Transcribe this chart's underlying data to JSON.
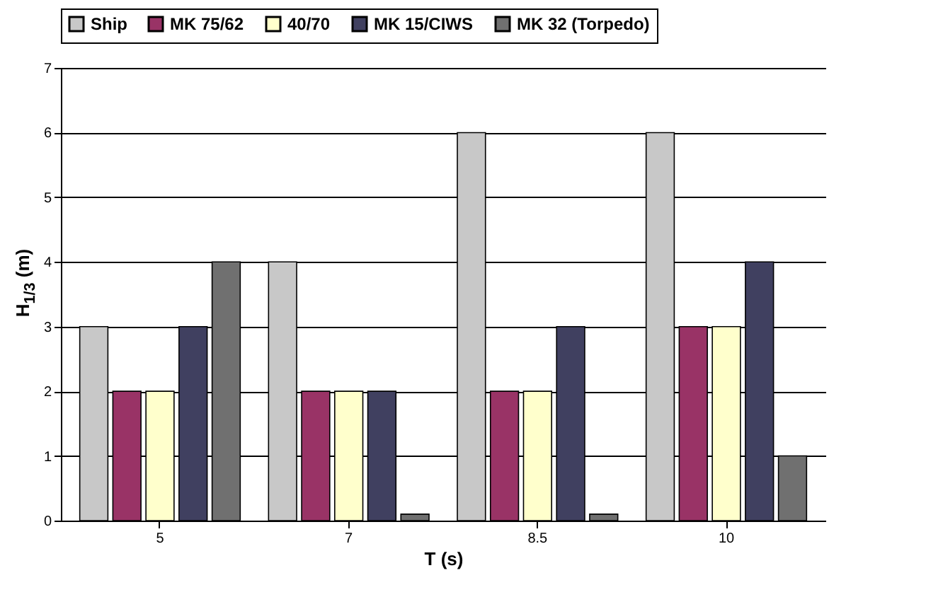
{
  "chart_data": {
    "type": "bar",
    "xlabel": "T (s)",
    "ylabel": "H$_{1/3}$ (m)",
    "categories": [
      "5",
      "7",
      "8.5",
      "10"
    ],
    "series": [
      {
        "name": "Ship",
        "color": "#c8c8c8",
        "values": [
          3,
          4,
          6,
          6
        ]
      },
      {
        "name": "MK 75/62",
        "color": "#993366",
        "values": [
          2,
          2,
          2,
          3
        ]
      },
      {
        "name": "40/70",
        "color": "#ffffcc",
        "values": [
          2,
          2,
          2,
          3
        ]
      },
      {
        "name": "MK 15/CIWS",
        "color": "#404060",
        "values": [
          3,
          2,
          3,
          4
        ]
      },
      {
        "name": "MK 32 (Torpedo)",
        "color": "#707070",
        "values": [
          4,
          0.1,
          0.1,
          1
        ]
      }
    ],
    "ylim": [
      0,
      7
    ],
    "yticks": [
      0,
      1,
      2,
      3,
      4,
      5,
      6,
      7
    ],
    "grid": "y",
    "legend": "top"
  }
}
